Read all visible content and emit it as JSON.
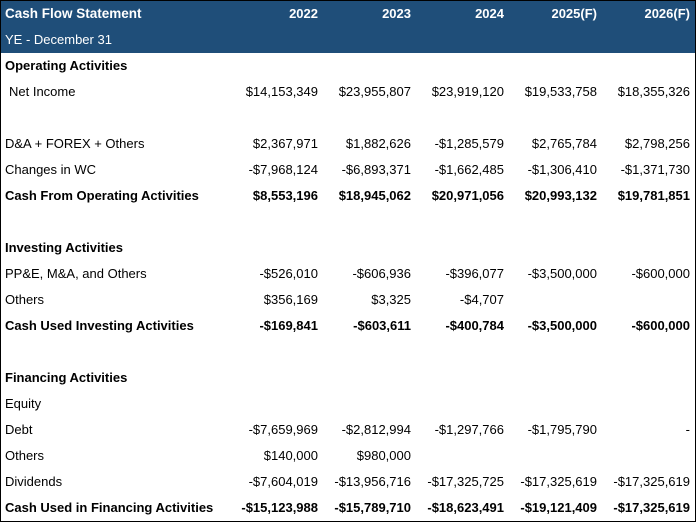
{
  "header": {
    "title": "Cash Flow Statement",
    "subtitle": "YE - December 31",
    "years": [
      "2022",
      "2023",
      "2024",
      "2025(F)",
      "2026(F)"
    ],
    "bg_color": "#1F4E79",
    "text_color": "#FFFFFF"
  },
  "table": {
    "rows": [
      {
        "type": "section",
        "label": "Operating Activities",
        "values": [
          "",
          "",
          "",
          "",
          ""
        ]
      },
      {
        "type": "data",
        "indent": true,
        "label": "Net Income",
        "values": [
          "$14,153,349",
          "$23,955,807",
          "$23,919,120",
          "$19,533,758",
          "$18,355,326"
        ]
      },
      {
        "type": "blank",
        "label": "",
        "values": [
          "",
          "",
          "",
          "",
          ""
        ]
      },
      {
        "type": "data",
        "label": "D&A + FOREX + Others",
        "values": [
          "$2,367,971",
          "$1,882,626",
          "-$1,285,579",
          "$2,765,784",
          "$2,798,256"
        ]
      },
      {
        "type": "data",
        "label": "Changes in WC",
        "values": [
          "-$7,968,124",
          "-$6,893,371",
          "-$1,662,485",
          "-$1,306,410",
          "-$1,371,730"
        ]
      },
      {
        "type": "total",
        "label": "Cash From Operating Activities",
        "values": [
          "$8,553,196",
          "$18,945,062",
          "$20,971,056",
          "$20,993,132",
          "$19,781,851"
        ]
      },
      {
        "type": "blank",
        "label": "",
        "values": [
          "",
          "",
          "",
          "",
          ""
        ]
      },
      {
        "type": "section",
        "label": "Investing Activities",
        "values": [
          "",
          "",
          "",
          "",
          ""
        ]
      },
      {
        "type": "data",
        "label": "PP&E, M&A, and Others",
        "values": [
          "-$526,010",
          "-$606,936",
          "-$396,077",
          "-$3,500,000",
          "-$600,000"
        ]
      },
      {
        "type": "data",
        "label": "Others",
        "values": [
          "$356,169",
          "$3,325",
          "-$4,707",
          "",
          ""
        ]
      },
      {
        "type": "total",
        "label": "Cash Used Investing Activities",
        "values": [
          "-$169,841",
          "-$603,611",
          "-$400,784",
          "-$3,500,000",
          "-$600,000"
        ]
      },
      {
        "type": "blank",
        "label": "",
        "values": [
          "",
          "",
          "",
          "",
          ""
        ]
      },
      {
        "type": "section",
        "label": "Financing Activities",
        "values": [
          "",
          "",
          "",
          "",
          ""
        ]
      },
      {
        "type": "data",
        "label": "Equity",
        "values": [
          "",
          "",
          "",
          "",
          ""
        ]
      },
      {
        "type": "data",
        "label": "Debt",
        "values": [
          "-$7,659,969",
          "-$2,812,994",
          "-$1,297,766",
          "-$1,795,790",
          "-"
        ]
      },
      {
        "type": "data",
        "label": "Others",
        "values": [
          "$140,000",
          "$980,000",
          "",
          "",
          ""
        ]
      },
      {
        "type": "data",
        "label": "Dividends",
        "values": [
          "-$7,604,019",
          "-$13,956,716",
          "-$17,325,725",
          "-$17,325,619",
          "-$17,325,619"
        ]
      },
      {
        "type": "total",
        "label": "Cash Used in Financing Activities",
        "values": [
          "-$15,123,988",
          "-$15,789,710",
          "-$18,623,491",
          "-$19,121,409",
          "-$17,325,619"
        ]
      }
    ]
  }
}
